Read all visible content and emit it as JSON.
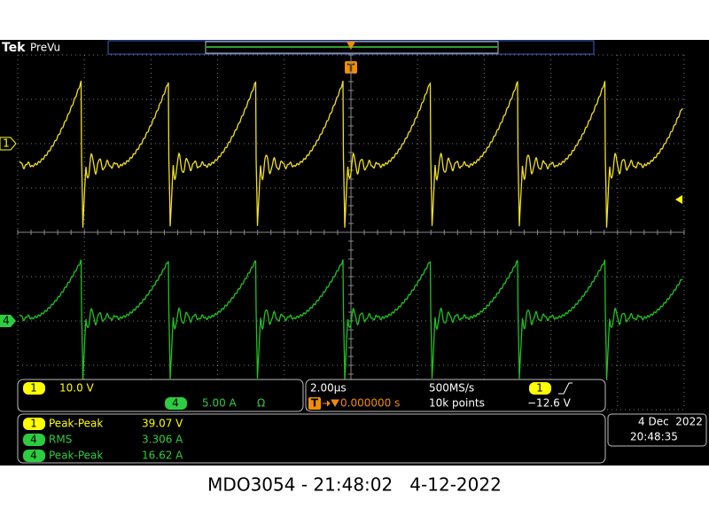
{
  "header": {
    "brand": "Tek",
    "mode": "PreVu",
    "trigger_marker": "T"
  },
  "channel_markers": {
    "ch1": "1",
    "ch4": "4"
  },
  "vertical": {
    "ch1_badge": "1",
    "ch1_scale": "10.0 V",
    "ch4_badge": "4",
    "ch4_scale": "5.00 A",
    "ch4_termination": "Ω"
  },
  "horizontal": {
    "timebase": "2.00µs",
    "sample_rate": "500MS/s",
    "trigger_badge": "T",
    "trigger_position": "0.000000 s",
    "record_length": "10k points",
    "trigger_source": "1",
    "trigger_level": "−12.6 V"
  },
  "measurements": [
    {
      "channel": "1",
      "name": "Peak-Peak",
      "value": "39.07 V"
    },
    {
      "channel": "4",
      "name": "RMS",
      "value": "3.306 A"
    },
    {
      "channel": "4",
      "name": "Peak-Peak",
      "value": "16.62 A"
    }
  ],
  "datetime": {
    "date": "4 Dec  2022",
    "time": "20:48:35"
  },
  "caption": "MDO3054 - 21:48:02   4-12-2022"
}
